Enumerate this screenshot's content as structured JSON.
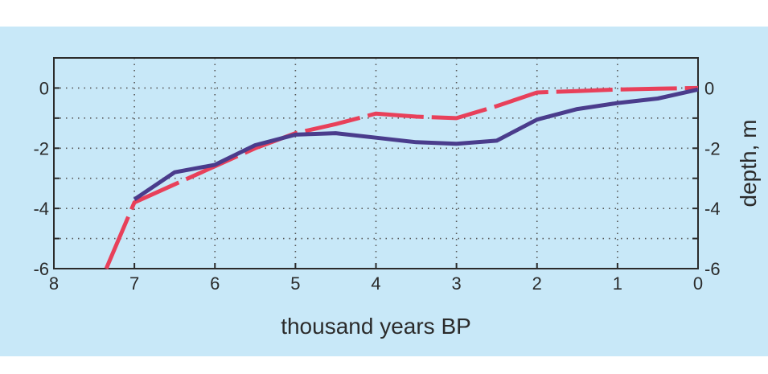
{
  "chart_data": {
    "type": "line",
    "title": "",
    "xlabel": "thousand years BP",
    "ylabel": "depth, m",
    "xlim": [
      8,
      0
    ],
    "ylim": [
      -6,
      1
    ],
    "x_ticks": [
      8,
      7,
      6,
      5,
      4,
      3,
      2,
      1,
      0
    ],
    "y_ticks": [
      0,
      -2,
      -4,
      -6
    ],
    "grid": true,
    "series": [
      {
        "color": "#e8405a",
        "style": "dashed",
        "x": [
          7.35,
          7.0,
          6.5,
          6.0,
          5.5,
          5.0,
          4.5,
          4.0,
          3.5,
          3.0,
          2.5,
          2.0,
          1.5,
          1.0,
          0.5,
          0.0
        ],
        "y": [
          -6.0,
          -3.8,
          -3.2,
          -2.6,
          -2.0,
          -1.5,
          -1.2,
          -0.85,
          -0.95,
          -1.0,
          -0.6,
          -0.15,
          -0.1,
          -0.05,
          -0.02,
          0.0
        ]
      },
      {
        "color": "#4a3c8c",
        "style": "solid",
        "x": [
          7.0,
          6.5,
          6.0,
          5.5,
          5.0,
          4.5,
          4.0,
          3.5,
          3.0,
          2.5,
          2.0,
          1.5,
          1.0,
          0.5,
          0.0
        ],
        "y": [
          -3.7,
          -2.8,
          -2.55,
          -1.9,
          -1.55,
          -1.5,
          -1.65,
          -1.8,
          -1.85,
          -1.75,
          -1.05,
          -0.7,
          -0.5,
          -0.35,
          -0.05
        ]
      }
    ]
  }
}
